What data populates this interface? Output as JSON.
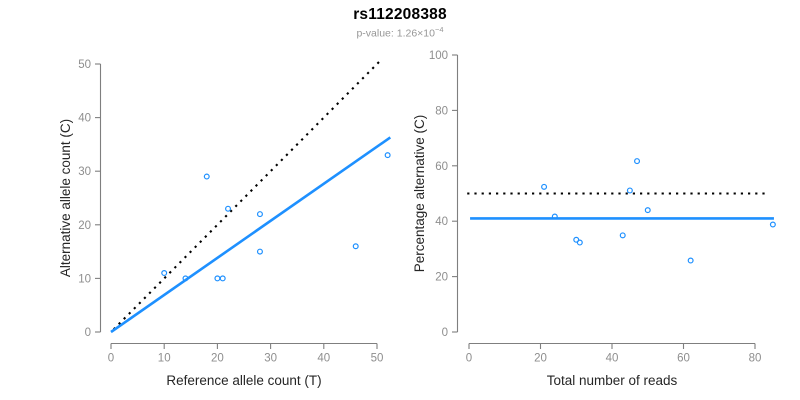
{
  "header": {
    "title": "rs112208388",
    "p_value": {
      "text": "p-value: 1.26×10",
      "exponent": "−4"
    }
  },
  "colors": {
    "accent_blue": "#1E90FF",
    "line_black": "#000000",
    "axis_gray": "#7F7F7F",
    "tick_label_gray": "#8E8E8E",
    "axis_title_color": "#262626"
  },
  "chart_data": [
    {
      "type": "scatter",
      "name": "allele-count-scatter",
      "xlabel": "Reference allele count (T)",
      "ylabel": "Alternative allele count (C)",
      "xticks": [
        0,
        10,
        20,
        30,
        40,
        50
      ],
      "yticks": [
        0,
        10,
        20,
        30,
        40,
        50
      ],
      "xlim": [
        0,
        52.5
      ],
      "ylim": [
        0,
        51
      ],
      "points": [
        [
          10,
          11
        ],
        [
          14,
          10
        ],
        [
          18,
          29
        ],
        [
          20,
          10
        ],
        [
          21,
          10
        ],
        [
          22,
          23
        ],
        [
          28,
          15
        ],
        [
          28,
          22
        ],
        [
          46,
          16
        ],
        [
          52,
          33
        ]
      ],
      "lines": [
        {
          "name": "identity-line",
          "style": "dotted",
          "color": "#000000",
          "x1": 0.5,
          "y1": 0.5,
          "x2": 51,
          "y2": 51
        },
        {
          "name": "regression-line",
          "style": "solid",
          "color": "#1E90FF",
          "x1": 0,
          "y1": 0,
          "x2": 52.5,
          "y2": 36.3
        }
      ]
    },
    {
      "type": "scatter",
      "name": "percentage-alternative-scatter",
      "xlabel": "Total number of reads",
      "ylabel": "Percentage alternative (C)",
      "xticks": [
        0,
        20,
        40,
        60,
        80
      ],
      "yticks": [
        0,
        20,
        40,
        60,
        80,
        100
      ],
      "xlim": [
        0,
        85.5
      ],
      "ylim": [
        0,
        100
      ],
      "points": [
        [
          21,
          52.4
        ],
        [
          24,
          41.7
        ],
        [
          30,
          33.3
        ],
        [
          31,
          32.3
        ],
        [
          43,
          34.9
        ],
        [
          45,
          51.1
        ],
        [
          47,
          61.7
        ],
        [
          50,
          44
        ],
        [
          62,
          25.8
        ],
        [
          85,
          38.8
        ]
      ],
      "lines": [
        {
          "name": "expected-50pct-line",
          "style": "dotted",
          "color": "#000000",
          "x1": -0.5,
          "y1": 50,
          "x2": 83,
          "y2": 50
        },
        {
          "name": "mean-percentage-line",
          "style": "solid",
          "color": "#1E90FF",
          "x1": 0.3,
          "y1": 41,
          "x2": 85.3,
          "y2": 41
        }
      ]
    }
  ]
}
